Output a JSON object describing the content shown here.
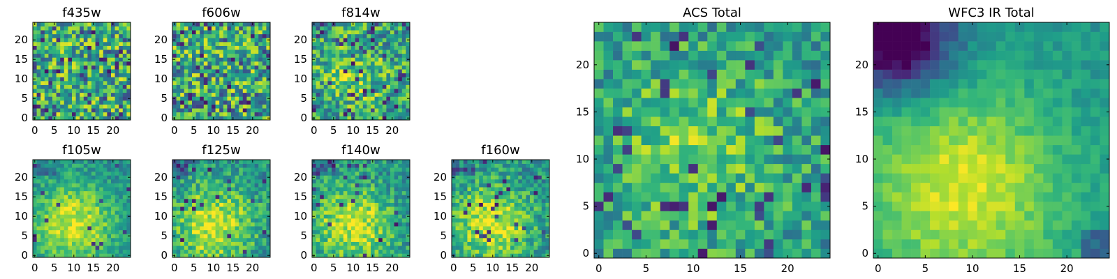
{
  "chart_data": [
    {
      "type": "heatmap",
      "title": "f435w",
      "grid_size": 25,
      "xlim": [
        0,
        24
      ],
      "ylim": [
        0,
        24
      ],
      "xticks": [
        0,
        5,
        10,
        15,
        20
      ],
      "yticks": [
        0,
        5,
        10,
        15,
        20
      ],
      "pattern": "noise",
      "noise_level": 0.35,
      "dark_fraction": 0.1,
      "colormap": "viridis"
    },
    {
      "type": "heatmap",
      "title": "f606w",
      "grid_size": 25,
      "xlim": [
        0,
        24
      ],
      "ylim": [
        0,
        24
      ],
      "xticks": [
        0,
        5,
        10,
        15,
        20
      ],
      "yticks": [
        0,
        5,
        10,
        15,
        20
      ],
      "pattern": "noise",
      "noise_level": 0.35,
      "dark_fraction": 0.12,
      "colormap": "viridis"
    },
    {
      "type": "heatmap",
      "title": "f814w",
      "grid_size": 25,
      "xlim": [
        0,
        24
      ],
      "ylim": [
        0,
        24
      ],
      "xticks": [
        0,
        5,
        10,
        15,
        20
      ],
      "yticks": [
        0,
        5,
        10,
        15,
        20
      ],
      "pattern": "noise-with-center",
      "noise_level": 0.3,
      "dark_fraction": 0.08,
      "colormap": "viridis"
    },
    {
      "type": "heatmap",
      "title": "f105w",
      "grid_size": 25,
      "xlim": [
        0,
        24
      ],
      "ylim": [
        0,
        24
      ],
      "xticks": [
        0,
        5,
        10,
        15,
        20
      ],
      "yticks": [
        0,
        5,
        10,
        15,
        20
      ],
      "pattern": "smooth-blob",
      "noise_level": 0.15,
      "dark_fraction": 0.03,
      "colormap": "viridis"
    },
    {
      "type": "heatmap",
      "title": "f125w",
      "grid_size": 25,
      "xlim": [
        0,
        24
      ],
      "ylim": [
        0,
        24
      ],
      "xticks": [
        0,
        5,
        10,
        15,
        20
      ],
      "yticks": [
        0,
        5,
        10,
        15,
        20
      ],
      "pattern": "smooth-blob",
      "noise_level": 0.2,
      "dark_fraction": 0.03,
      "colormap": "viridis"
    },
    {
      "type": "heatmap",
      "title": "f140w",
      "grid_size": 25,
      "xlim": [
        0,
        24
      ],
      "ylim": [
        0,
        24
      ],
      "xticks": [
        0,
        5,
        10,
        15,
        20
      ],
      "yticks": [
        0,
        5,
        10,
        15,
        20
      ],
      "pattern": "smooth-blob",
      "noise_level": 0.2,
      "dark_fraction": 0.03,
      "colormap": "viridis"
    },
    {
      "type": "heatmap",
      "title": "f160w",
      "grid_size": 25,
      "xlim": [
        0,
        24
      ],
      "ylim": [
        0,
        24
      ],
      "xticks": [
        0,
        5,
        10,
        15,
        20
      ],
      "yticks": [
        0,
        5,
        10,
        15,
        20
      ],
      "pattern": "smooth-blob",
      "noise_level": 0.2,
      "dark_fraction": 0.03,
      "colormap": "viridis"
    },
    {
      "type": "heatmap",
      "title": "ACS Total",
      "grid_size": 25,
      "xlim": [
        0,
        24
      ],
      "ylim": [
        0,
        24
      ],
      "xticks": [
        0,
        5,
        10,
        15,
        20
      ],
      "yticks": [
        0,
        5,
        10,
        15,
        20
      ],
      "pattern": "noise-with-center",
      "noise_level": 0.22,
      "dark_fraction": 0.05,
      "colormap": "viridis"
    },
    {
      "type": "heatmap",
      "title": "WFC3 IR Total",
      "grid_size": 25,
      "xlim": [
        0,
        24
      ],
      "ylim": [
        0,
        24
      ],
      "xticks": [
        0,
        5,
        10,
        15,
        20
      ],
      "yticks": [
        0,
        5,
        10,
        15,
        20
      ],
      "pattern": "smooth-blob-dark-corner",
      "noise_level": 0.08,
      "dark_fraction": 0.0,
      "colormap": "viridis"
    }
  ]
}
